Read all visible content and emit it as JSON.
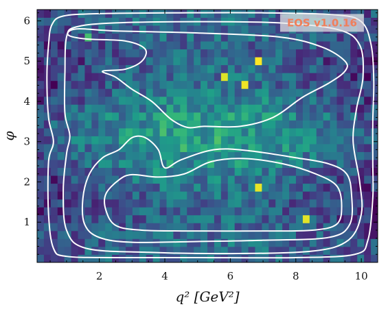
{
  "chart_data": {
    "type": "heatmap",
    "title": "",
    "xlabel": "q² [GeV²]",
    "ylabel": "φ",
    "xlim": [
      0.1,
      10.5
    ],
    "ylim": [
      0.0,
      6.28
    ],
    "x_ticks": [
      2,
      4,
      6,
      8,
      10
    ],
    "y_ticks": [
      1,
      2,
      3,
      4,
      5,
      6
    ],
    "grid": false,
    "colormap": "viridis",
    "bins": {
      "nx": 50,
      "ny": 32
    },
    "hot_bins": [
      {
        "q2": 5.9,
        "phi": 4.65,
        "level": 0.95
      },
      {
        "q2": 6.95,
        "phi": 4.95,
        "level": 1.0
      },
      {
        "q2": 6.4,
        "phi": 4.35,
        "level": 0.98
      },
      {
        "q2": 6.95,
        "phi": 1.95,
        "level": 0.97
      },
      {
        "q2": 8.25,
        "phi": 1.15,
        "level": 0.96
      },
      {
        "q2": 1.65,
        "phi": 5.55,
        "level": 0.7
      }
    ],
    "contours": [
      {
        "name": "outer",
        "points": [
          [
            0.55,
            5.9
          ],
          [
            0.9,
            6.12
          ],
          [
            2.0,
            6.18
          ],
          [
            4.5,
            6.2
          ],
          [
            7.0,
            6.2
          ],
          [
            9.2,
            6.15
          ],
          [
            10.0,
            5.98
          ],
          [
            10.3,
            5.4
          ],
          [
            10.38,
            4.5
          ],
          [
            10.35,
            3.5
          ],
          [
            10.35,
            2.5
          ],
          [
            10.35,
            1.6
          ],
          [
            10.2,
            0.55
          ],
          [
            9.8,
            0.2
          ],
          [
            8.0,
            0.12
          ],
          [
            5.0,
            0.12
          ],
          [
            2.5,
            0.12
          ],
          [
            1.0,
            0.15
          ],
          [
            0.6,
            0.35
          ],
          [
            0.45,
            1.2
          ],
          [
            0.45,
            2.5
          ],
          [
            0.6,
            3.0
          ],
          [
            0.45,
            3.6
          ],
          [
            0.4,
            4.6
          ],
          [
            0.45,
            5.4
          ],
          [
            0.55,
            5.9
          ]
        ]
      },
      {
        "name": "middle",
        "points": [
          [
            1.0,
            5.6
          ],
          [
            1.3,
            5.85
          ],
          [
            2.5,
            5.95
          ],
          [
            5.0,
            5.98
          ],
          [
            7.5,
            5.95
          ],
          [
            9.3,
            5.78
          ],
          [
            9.95,
            5.4
          ],
          [
            10.05,
            4.6
          ],
          [
            9.85,
            3.8
          ],
          [
            9.75,
            3.0
          ],
          [
            9.95,
            2.0
          ],
          [
            10.0,
            1.2
          ],
          [
            9.6,
            0.55
          ],
          [
            8.5,
            0.28
          ],
          [
            6.0,
            0.22
          ],
          [
            3.5,
            0.25
          ],
          [
            1.6,
            0.35
          ],
          [
            1.0,
            0.8
          ],
          [
            0.9,
            1.8
          ],
          [
            1.0,
            2.7
          ],
          [
            1.1,
            3.15
          ],
          [
            0.95,
            3.7
          ],
          [
            0.95,
            4.7
          ],
          [
            1.0,
            5.6
          ]
        ]
      },
      {
        "name": "inner-upper",
        "points": [
          [
            1.05,
            5.65
          ],
          [
            1.3,
            5.8
          ],
          [
            2.5,
            5.75
          ],
          [
            5.0,
            5.7
          ],
          [
            7.5,
            5.6
          ],
          [
            8.8,
            5.35
          ],
          [
            9.5,
            5.0
          ],
          [
            9.5,
            4.75
          ],
          [
            9.0,
            4.45
          ],
          [
            8.2,
            4.1
          ],
          [
            7.3,
            3.6
          ],
          [
            6.3,
            3.38
          ],
          [
            5.2,
            3.38
          ],
          [
            4.7,
            3.35
          ],
          [
            4.2,
            3.55
          ],
          [
            3.6,
            4.0
          ],
          [
            3.0,
            4.3
          ],
          [
            2.5,
            4.6
          ],
          [
            2.1,
            4.75
          ],
          [
            2.8,
            4.8
          ],
          [
            3.3,
            5.0
          ],
          [
            3.4,
            5.3
          ],
          [
            2.8,
            5.5
          ],
          [
            1.6,
            5.55
          ],
          [
            1.05,
            5.65
          ]
        ]
      },
      {
        "name": "inner-lower",
        "points": [
          [
            3.4,
            3.1
          ],
          [
            3.0,
            3.1
          ],
          [
            2.6,
            2.8
          ],
          [
            2.1,
            2.6
          ],
          [
            1.7,
            2.2
          ],
          [
            1.5,
            1.6
          ],
          [
            1.55,
            0.95
          ],
          [
            2.0,
            0.62
          ],
          [
            3.0,
            0.5
          ],
          [
            5.0,
            0.52
          ],
          [
            7.0,
            0.55
          ],
          [
            9.0,
            0.62
          ],
          [
            9.65,
            0.95
          ],
          [
            9.7,
            1.7
          ],
          [
            9.55,
            2.2
          ],
          [
            9.0,
            2.45
          ],
          [
            8.0,
            2.6
          ],
          [
            6.5,
            2.78
          ],
          [
            5.5,
            2.8
          ],
          [
            4.5,
            2.55
          ],
          [
            4.0,
            2.35
          ],
          [
            3.8,
            2.8
          ],
          [
            3.4,
            3.1
          ]
        ]
      },
      {
        "name": "core-lower",
        "points": [
          [
            2.6,
            2.05
          ],
          [
            2.2,
            1.7
          ],
          [
            2.2,
            1.3
          ],
          [
            2.5,
            0.92
          ],
          [
            3.3,
            0.8
          ],
          [
            5.0,
            0.78
          ],
          [
            7.0,
            0.78
          ],
          [
            8.5,
            0.8
          ],
          [
            9.25,
            0.95
          ],
          [
            9.4,
            1.4
          ],
          [
            9.25,
            1.9
          ],
          [
            8.6,
            2.2
          ],
          [
            7.6,
            2.45
          ],
          [
            6.4,
            2.58
          ],
          [
            5.4,
            2.5
          ],
          [
            4.6,
            2.2
          ],
          [
            3.8,
            2.12
          ],
          [
            3.0,
            2.18
          ],
          [
            2.6,
            2.05
          ]
        ]
      }
    ],
    "annotations": [
      {
        "text": "EOS v1.0.16",
        "q2": 8.8,
        "phi": 5.95
      }
    ]
  },
  "colors": {
    "contour": "#ffffff",
    "watermark_text": "#f07f5a",
    "watermark_bg": "#e6e6e6"
  }
}
